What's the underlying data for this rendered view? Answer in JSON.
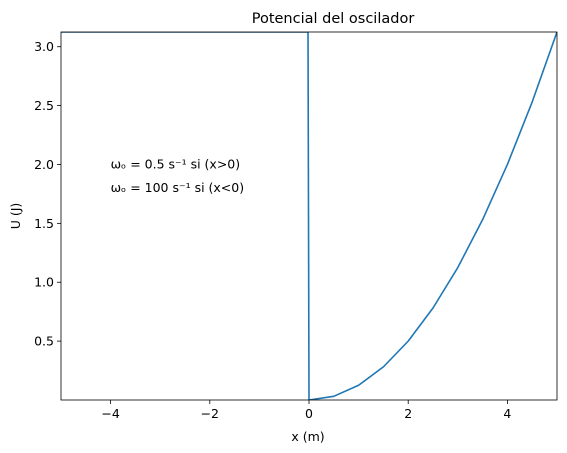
{
  "chart_data": {
    "type": "line",
    "title": "Potencial del oscilador",
    "xlabel": "x (m)",
    "ylabel": "U (J)",
    "xlim": [
      -5,
      5
    ],
    "ylim": [
      0,
      3.125
    ],
    "xticks": [
      -4,
      -2,
      0,
      2,
      4
    ],
    "xtick_labels": [
      "−4",
      "−2",
      "0",
      "2",
      "4"
    ],
    "yticks": [
      0.5,
      1.0,
      1.5,
      2.0,
      2.5,
      3.0
    ],
    "ytick_labels": [
      "0.5",
      "1.0",
      "1.5",
      "2.0",
      "2.5",
      "3.0"
    ],
    "grid": false,
    "series": [
      {
        "color": "#1f77b4",
        "x": [
          -5,
          -0.04,
          -0.02,
          0,
          0.5,
          1,
          1.5,
          2,
          2.5,
          3,
          3.5,
          4,
          4.5,
          5
        ],
        "y": [
          3.125,
          3.125,
          3.125,
          0,
          0.03125,
          0.125,
          0.28125,
          0.5,
          0.78125,
          1.125,
          1.53125,
          2.0,
          2.53125,
          3.125
        ]
      }
    ],
    "annotations": [
      {
        "text": "ωₒ = 0.5 s⁻¹ si (x>0)",
        "x": -4,
        "y": 2.0
      },
      {
        "text": "ωₒ = 100 s⁻¹ si (x<0)",
        "x": -4,
        "y": 1.8
      }
    ]
  }
}
